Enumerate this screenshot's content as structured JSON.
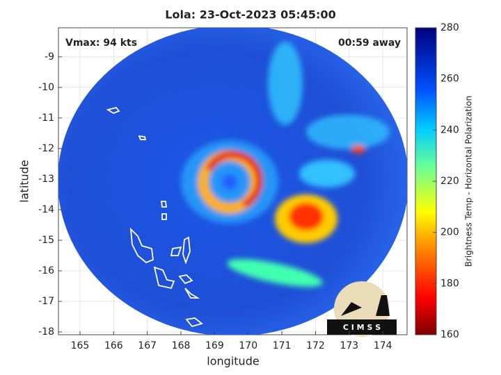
{
  "title": "Lola: 23-Oct-2023 05:45:00",
  "annotations": {
    "vmax": "Vmax: 94 kts",
    "away": "00:59 away"
  },
  "map": {
    "xlabel": "longitude",
    "ylabel": "latitude",
    "xlim": [
      164.36,
      174.72
    ],
    "ylim": [
      -18.09,
      -8.05
    ],
    "xticks": [
      165,
      166,
      167,
      168,
      169,
      170,
      171,
      172,
      173,
      174
    ],
    "yticks": [
      -9,
      -10,
      -11,
      -12,
      -13,
      -14,
      -15,
      -16,
      -17,
      -18
    ]
  },
  "colorbar": {
    "label": "Brightness Temp - Horizontal Polarization",
    "lim": [
      160,
      280
    ],
    "ticks": [
      160,
      180,
      200,
      220,
      240,
      260,
      280
    ]
  },
  "logo": "C I M S S"
}
